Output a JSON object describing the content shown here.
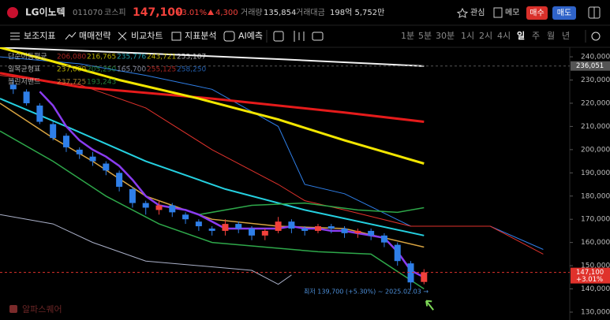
{
  "header": {
    "name": "LG이노텍",
    "code": "011070",
    "market": "코스피",
    "price": "147,100",
    "change_pct": "+3.01%",
    "change": "4,300",
    "volume_label": "거래량",
    "volume": "135,854",
    "amount_label": "거래대금",
    "amount": "198억 5,752만",
    "buttons": [
      "관심",
      "메모",
      "매수",
      "매도"
    ]
  },
  "toolbar": {
    "tools": [
      "보조지표",
      "매매전략",
      "비교차트",
      "지표분석",
      "AI예측"
    ],
    "periods": [
      "1분",
      "5분",
      "30분",
      "1시",
      "2시",
      "4시",
      "일",
      "주",
      "월",
      "년"
    ],
    "selected_period": 6
  },
  "watermark": "알파스퀘어",
  "chart_data": {
    "type": "candlestick",
    "x": [
      0,
      1,
      2,
      3,
      4,
      5,
      6,
      7,
      8,
      9,
      10,
      11,
      12,
      13,
      14,
      15,
      16,
      17,
      18,
      19,
      20,
      21,
      22,
      23,
      24,
      25,
      26,
      27,
      28,
      29,
      30,
      31
    ],
    "open": [
      228000,
      225000,
      219000,
      211000,
      206000,
      200000,
      197000,
      194000,
      190000,
      183000,
      177000,
      174000,
      176000,
      172000,
      169000,
      166000,
      165000,
      168000,
      166000,
      163000,
      165000,
      169000,
      166000,
      165000,
      167000,
      166000,
      164000,
      165000,
      163000,
      159000,
      151000,
      143000
    ],
    "high": [
      230000,
      226000,
      220000,
      212000,
      207000,
      201000,
      199000,
      195000,
      191000,
      184000,
      178000,
      178000,
      177000,
      173000,
      170000,
      167000,
      170000,
      169000,
      167000,
      166000,
      171000,
      170000,
      167000,
      168000,
      168000,
      167000,
      166000,
      166000,
      164000,
      160000,
      152000,
      148500
    ],
    "low": [
      224000,
      219000,
      211000,
      204000,
      199000,
      196000,
      193000,
      189000,
      182000,
      175000,
      172000,
      172000,
      171000,
      168000,
      165000,
      163000,
      163000,
      164000,
      161000,
      161000,
      164000,
      164000,
      163000,
      164000,
      164000,
      162000,
      162000,
      161000,
      158000,
      150000,
      139700,
      142000
    ],
    "close": [
      226000,
      220000,
      212000,
      205000,
      201000,
      198000,
      195000,
      191000,
      184000,
      177000,
      175000,
      176000,
      173000,
      170000,
      167000,
      165000,
      168000,
      166000,
      163000,
      165000,
      169000,
      166000,
      165000,
      167000,
      166000,
      164000,
      165000,
      163000,
      160000,
      152000,
      142800,
      147100
    ],
    "up_color": "#f2413b",
    "down_color": "#2f7fe8",
    "xlim": [
      -1,
      42
    ],
    "ylim": [
      126600,
      244100
    ],
    "yticks": [
      {
        "value": 240000,
        "label": "240,000"
      },
      {
        "value": 230000,
        "label": "230,000"
      },
      {
        "value": 220000,
        "label": "220,000"
      },
      {
        "value": 210000,
        "label": "210,000"
      },
      {
        "value": 200000,
        "label": "200,000"
      },
      {
        "value": 190000,
        "label": "190,000"
      },
      {
        "value": 180000,
        "label": "180,000"
      },
      {
        "value": 170000,
        "label": "170,000"
      },
      {
        "value": 160000,
        "label": "160,000"
      },
      {
        "value": 150000,
        "label": "150,000"
      },
      {
        "value": 140000,
        "label": "140,000"
      },
      {
        "value": 130000,
        "label": "130,000"
      }
    ],
    "price_markers": [
      {
        "value": 236051,
        "label": "236,051",
        "color": "#555555"
      },
      {
        "value": 147100,
        "label": "147,100",
        "sub": "+3.01%",
        "color": "#e0322c"
      }
    ],
    "overlays": [
      {
        "color": "#2f7fe8",
        "x": [
          -1,
          5,
          10,
          15,
          20,
          22,
          25,
          30,
          36,
          40
        ],
        "values": [
          240000,
          237000,
          232000,
          226000,
          210000,
          185000,
          181000,
          167000,
          167000,
          157000
        ]
      },
      {
        "color": "#e0322c",
        "x": [
          -1,
          5,
          10,
          15,
          20,
          22,
          25,
          30,
          36,
          40
        ],
        "values": [
          232000,
          228000,
          218000,
          200000,
          185000,
          178000,
          174000,
          167000,
          167000,
          155000
        ]
      },
      {
        "color": "#f2f2f2",
        "x": [
          -1,
          10,
          20,
          31
        ],
        "values": [
          244000,
          241500,
          239000,
          236000
        ]
      },
      {
        "color": "#e51b1b",
        "x": [
          -1,
          5,
          15,
          25,
          31
        ],
        "values": [
          233000,
          227000,
          222000,
          216000,
          212000
        ]
      },
      {
        "color": "#f2e600",
        "x": [
          -1,
          3,
          8,
          14,
          20,
          25,
          31
        ],
        "values": [
          244000,
          238000,
          230000,
          222000,
          213000,
          204000,
          194000
        ]
      },
      {
        "color": "#25d0e0",
        "x": [
          -1,
          4,
          10,
          16,
          22,
          31
        ],
        "values": [
          222000,
          210000,
          195000,
          183000,
          174000,
          163000
        ]
      },
      {
        "color": "#2ea84a",
        "x": [
          -1,
          3,
          7,
          11,
          15,
          19,
          23,
          27,
          31
        ],
        "values": [
          208000,
          195000,
          180000,
          168000,
          160000,
          158000,
          156000,
          155000,
          140000
        ]
      },
      {
        "color": "#2ea84a",
        "x": [
          14,
          18,
          22,
          26,
          29,
          31
        ],
        "values": [
          172000,
          176000,
          177000,
          174000,
          173000,
          175000
        ]
      },
      {
        "color": "#d9a441",
        "x": [
          -1,
          3,
          6,
          10,
          15,
          20,
          25,
          31
        ],
        "values": [
          220000,
          205000,
          195000,
          180000,
          170000,
          167000,
          166000,
          158000
        ]
      },
      {
        "color": "#aab0c8",
        "x": [
          -1,
          3,
          6,
          10,
          14,
          18,
          20,
          21
        ],
        "values": [
          172000,
          168000,
          160000,
          152000,
          150000,
          148000,
          142000,
          146000
        ]
      },
      {
        "color": "#8a3cf0",
        "x": [
          2,
          3,
          4,
          5,
          6,
          7,
          8,
          9,
          10,
          11,
          12,
          13,
          14,
          15,
          16,
          17,
          18,
          19,
          20,
          21,
          22,
          23,
          24,
          25,
          26,
          27,
          28,
          29,
          30,
          31
        ],
        "values": [
          225000,
          219000,
          210000,
          204000,
          200000,
          197000,
          193000,
          187000,
          180000,
          176000,
          175000,
          174000,
          172000,
          169000,
          166000,
          166000,
          166000,
          166000,
          166000,
          167000,
          166000,
          166000,
          165000,
          165000,
          164000,
          163000,
          162000,
          156000,
          148000,
          145000
        ]
      }
    ],
    "indicators": [
      {
        "name": "단순이동평균",
        "values": [
          {
            "value": 206080,
            "label": "206,080",
            "color": "#e0322c"
          },
          {
            "value": 216765,
            "label": "216,765",
            "color": "#f2e600"
          },
          {
            "value": 235776,
            "label": "235,776",
            "color": "#25d0e0"
          },
          {
            "value": 243721,
            "label": "243,721",
            "color": "#f2e600"
          },
          {
            "value": 253107,
            "label": "253,107",
            "color": "#f2f2f2"
          }
        ]
      },
      {
        "name": "일목균형표",
        "values": [
          {
            "value": 237000,
            "label": "237,000",
            "color": "#f2e600"
          },
          {
            "value": 205250,
            "label": "205,250",
            "color": "#2ea84a"
          },
          {
            "value": 165700,
            "label": "165,700",
            "color": "#aab0c8"
          },
          {
            "value": 255125,
            "label": "255,125",
            "color": "#e0322c"
          },
          {
            "value": 258250,
            "label": "258,250",
            "color": "#2f7fe8"
          }
        ]
      },
      {
        "name": "볼린저밴드",
        "values": [
          {
            "value": 237725,
            "label": "237,725",
            "color": "#d9a441"
          },
          {
            "value": 193243,
            "label": "193,243",
            "color": "#2ea84a"
          }
        ]
      }
    ],
    "annotation": "최저 139,700 (+5.30%) ~ 2025.02.03 →"
  }
}
